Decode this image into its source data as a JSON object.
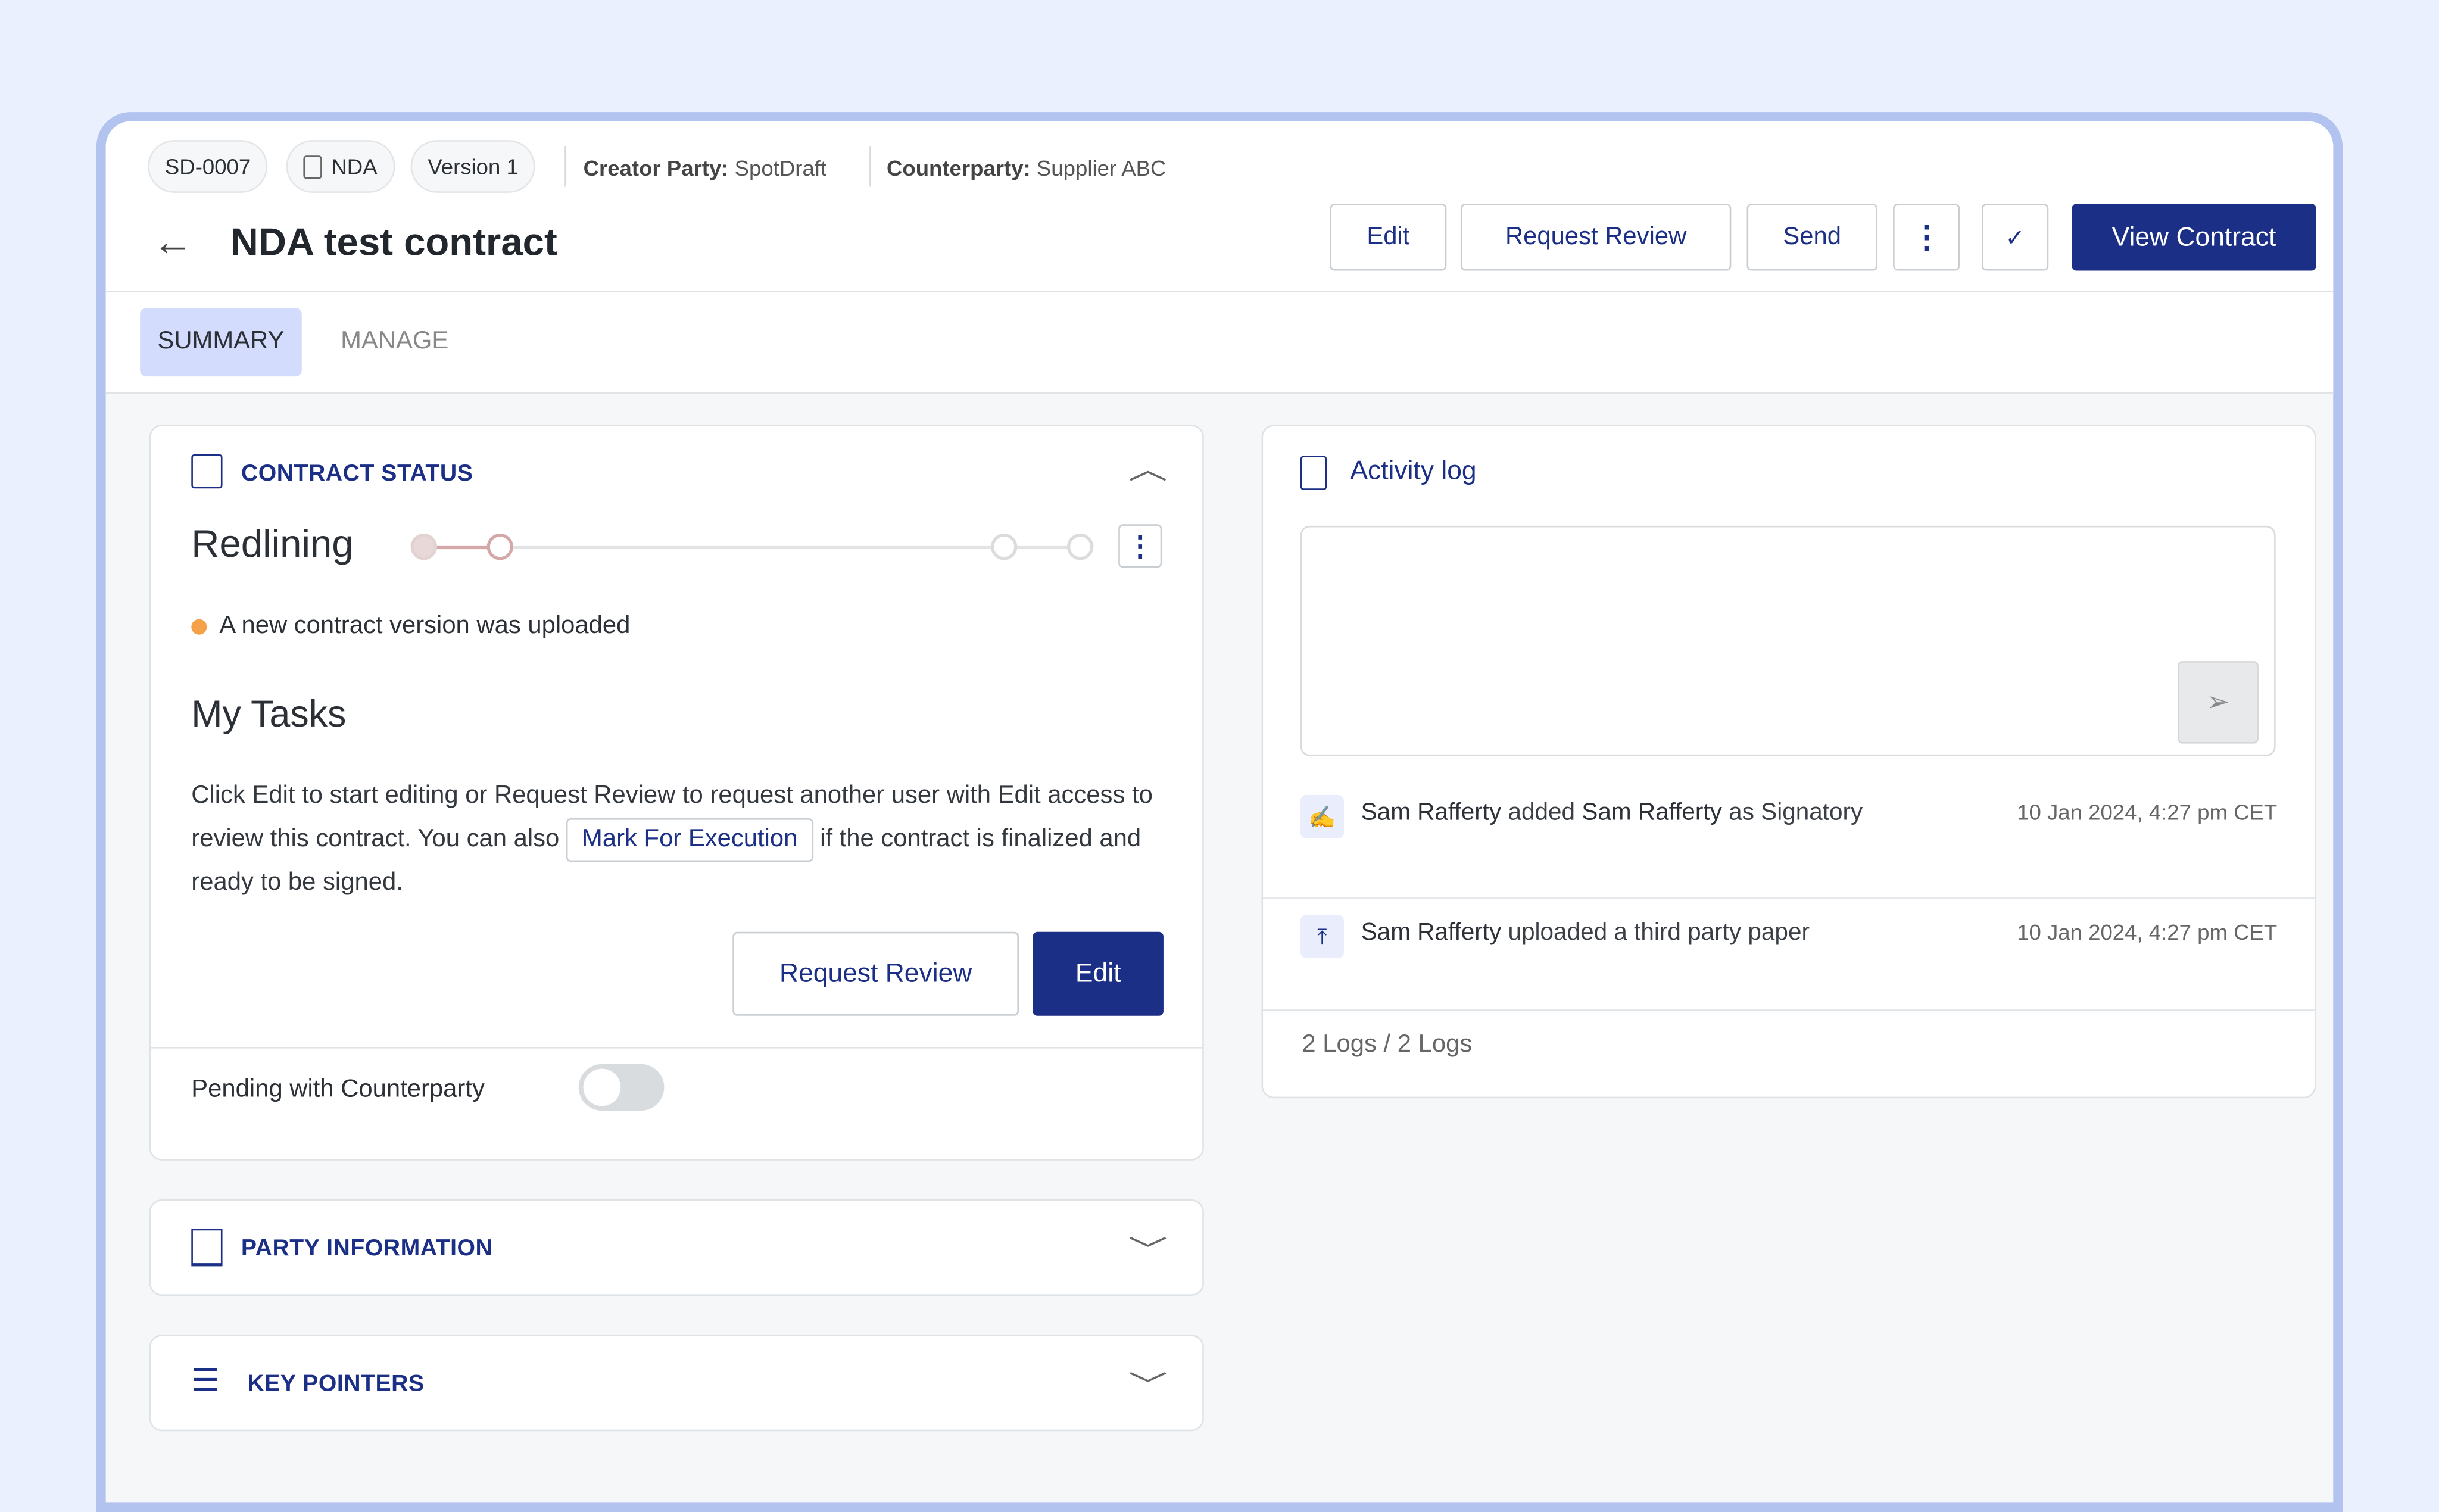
{
  "header": {
    "contract_id": "SD-0007",
    "type": "NDA",
    "version": "Version 1",
    "creator_label": "Creator Party:",
    "creator_value": "SpotDraft",
    "counterparty_label": "Counterparty:",
    "counterparty_value": "Supplier ABC",
    "title": "NDA test contract"
  },
  "actions": {
    "edit": "Edit",
    "request_review": "Request Review",
    "send": "Send",
    "view_contract": "View Contract"
  },
  "tabs": [
    {
      "label": "SUMMARY",
      "active": true
    },
    {
      "label": "MANAGE",
      "active": false
    }
  ],
  "contract_status": {
    "title": "CONTRACT STATUS",
    "stage": "Redlining",
    "message": "A new contract version was uploaded",
    "tasks_title": "My Tasks",
    "tasks_text_1": "Click Edit to start editing or Request Review to request another user with Edit access to review this contract. You can also",
    "mark_for_execution": "Mark For Execution",
    "tasks_text_2": "if the contract is finalized and ready to be signed.",
    "request_review": "Request Review",
    "edit": "Edit",
    "pending_label": "Pending with Counterparty",
    "pending_on": false,
    "stage_index": 2,
    "stage_count": 4,
    "colors": {
      "message_dot": "#f5a14a",
      "accent": "#1b2f86"
    }
  },
  "party_information": {
    "title": "PARTY INFORMATION"
  },
  "key_pointers": {
    "title": "KEY POINTERS"
  },
  "activity": {
    "title": "Activity log",
    "comment_value": "",
    "logs": [
      {
        "icon": "signature-icon",
        "actor": "Sam Rafferty",
        "action": "added",
        "target": "Sam Rafferty",
        "suffix": "as Signatory",
        "time": "10 Jan 2024, 4:27 pm CET"
      },
      {
        "icon": "upload-icon",
        "actor": "Sam Rafferty",
        "action": "uploaded a third party paper",
        "time": "10 Jan 2024, 4:27 pm CET"
      }
    ],
    "count": "2 Logs / 2 Logs"
  }
}
